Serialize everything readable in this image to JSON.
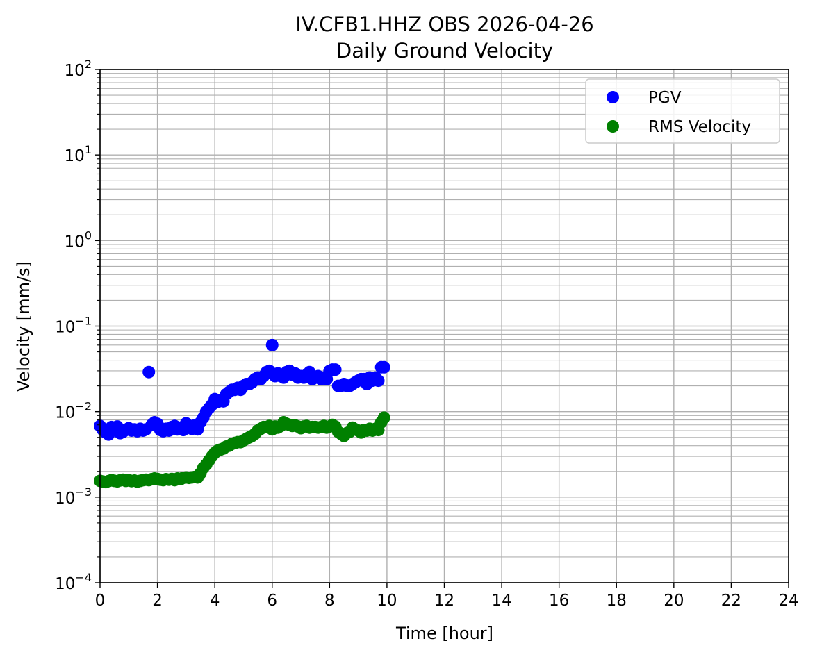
{
  "chart_data": {
    "type": "scatter",
    "title": "IV.CFB1.HHZ OBS 2026-04-26",
    "subtitle": "Daily Ground Velocity",
    "xlabel": "Time [hour]",
    "ylabel": "Velocity [mm/s]",
    "xlim": [
      0,
      24
    ],
    "ylim": [
      0.0001,
      100
    ],
    "yscale": "log",
    "grid": true,
    "legend_position": "top-right",
    "x_ticks": [
      "0",
      "2",
      "4",
      "6",
      "8",
      "10",
      "12",
      "14",
      "16",
      "18",
      "20",
      "22",
      "24"
    ],
    "y_ticks": [
      {
        "base": "10",
        "exp": "2"
      },
      {
        "base": "10",
        "exp": "1"
      },
      {
        "base": "10",
        "exp": "0"
      },
      {
        "base": "10",
        "exp": "−1"
      },
      {
        "base": "10",
        "exp": "−2"
      },
      {
        "base": "10",
        "exp": "−3"
      },
      {
        "base": "10",
        "exp": "−4"
      }
    ],
    "series": [
      {
        "name": "PGV",
        "color": "#0000ff",
        "x": [
          0.0,
          0.1,
          0.2,
          0.3,
          0.4,
          0.5,
          0.6,
          0.7,
          0.8,
          0.9,
          1.0,
          1.1,
          1.2,
          1.3,
          1.4,
          1.5,
          1.6,
          1.7,
          1.8,
          1.9,
          2.0,
          2.1,
          2.2,
          2.3,
          2.4,
          2.5,
          2.6,
          2.7,
          2.8,
          2.9,
          3.0,
          3.1,
          3.2,
          3.3,
          3.4,
          3.5,
          3.6,
          3.7,
          3.8,
          3.9,
          4.0,
          4.1,
          4.2,
          4.3,
          4.4,
          4.5,
          4.6,
          4.7,
          4.8,
          4.9,
          5.0,
          5.1,
          5.2,
          5.3,
          5.4,
          5.5,
          5.6,
          5.7,
          5.8,
          5.9,
          6.0,
          6.1,
          6.2,
          6.3,
          6.4,
          6.5,
          6.6,
          6.7,
          6.8,
          6.9,
          7.0,
          7.1,
          7.2,
          7.3,
          7.4,
          7.5,
          7.6,
          7.7,
          7.8,
          7.9,
          8.0,
          8.1,
          8.2,
          8.3,
          8.4,
          8.5,
          8.6,
          8.7,
          8.8,
          8.9,
          9.0,
          9.1,
          9.2,
          9.3,
          9.4,
          9.5,
          9.6,
          9.7,
          9.8,
          9.9
        ],
        "y": [
          0.0068,
          0.0061,
          0.0057,
          0.0054,
          0.0066,
          0.0062,
          0.0067,
          0.0056,
          0.0058,
          0.0061,
          0.0064,
          0.006,
          0.0062,
          0.0059,
          0.0063,
          0.006,
          0.0062,
          0.029,
          0.007,
          0.0075,
          0.0072,
          0.0061,
          0.0059,
          0.0063,
          0.006,
          0.0066,
          0.0068,
          0.0062,
          0.0065,
          0.0061,
          0.0073,
          0.0068,
          0.0063,
          0.0069,
          0.0062,
          0.0075,
          0.0085,
          0.01,
          0.011,
          0.012,
          0.014,
          0.013,
          0.0135,
          0.0132,
          0.016,
          0.017,
          0.018,
          0.018,
          0.019,
          0.018,
          0.02,
          0.021,
          0.021,
          0.022,
          0.024,
          0.025,
          0.024,
          0.026,
          0.029,
          0.03,
          0.06,
          0.026,
          0.028,
          0.026,
          0.025,
          0.029,
          0.03,
          0.027,
          0.028,
          0.025,
          0.026,
          0.025,
          0.027,
          0.029,
          0.024,
          0.025,
          0.026,
          0.024,
          0.025,
          0.024,
          0.03,
          0.031,
          0.031,
          0.02,
          0.02,
          0.021,
          0.02,
          0.02,
          0.021,
          0.022,
          0.023,
          0.024,
          0.024,
          0.021,
          0.025,
          0.023,
          0.025,
          0.023,
          0.033,
          0.033
        ]
      },
      {
        "name": "RMS Velocity",
        "color": "#008000",
        "x": [
          0.0,
          0.1,
          0.2,
          0.3,
          0.4,
          0.5,
          0.6,
          0.7,
          0.8,
          0.9,
          1.0,
          1.1,
          1.2,
          1.3,
          1.4,
          1.5,
          1.6,
          1.7,
          1.8,
          1.9,
          2.0,
          2.1,
          2.2,
          2.3,
          2.4,
          2.5,
          2.6,
          2.7,
          2.8,
          2.9,
          3.0,
          3.1,
          3.2,
          3.3,
          3.4,
          3.5,
          3.6,
          3.7,
          3.8,
          3.9,
          4.0,
          4.1,
          4.2,
          4.3,
          4.4,
          4.5,
          4.6,
          4.7,
          4.8,
          4.9,
          5.0,
          5.1,
          5.2,
          5.3,
          5.4,
          5.5,
          5.6,
          5.7,
          5.8,
          5.9,
          6.0,
          6.1,
          6.2,
          6.3,
          6.4,
          6.5,
          6.6,
          6.7,
          6.8,
          6.9,
          7.0,
          7.1,
          7.2,
          7.3,
          7.4,
          7.5,
          7.6,
          7.7,
          7.8,
          7.9,
          8.0,
          8.1,
          8.2,
          8.3,
          8.4,
          8.5,
          8.6,
          8.7,
          8.8,
          8.9,
          9.0,
          9.1,
          9.2,
          9.3,
          9.4,
          9.5,
          9.6,
          9.7,
          9.8,
          9.9
        ],
        "y": [
          0.00155,
          0.00152,
          0.0015,
          0.00154,
          0.00158,
          0.00155,
          0.00153,
          0.00157,
          0.0016,
          0.00155,
          0.00158,
          0.00154,
          0.00156,
          0.00152,
          0.00155,
          0.00158,
          0.0016,
          0.00158,
          0.00162,
          0.00165,
          0.00163,
          0.0016,
          0.00158,
          0.00162,
          0.0016,
          0.00163,
          0.00158,
          0.00165,
          0.00162,
          0.00168,
          0.0017,
          0.00168,
          0.0017,
          0.00172,
          0.0017,
          0.0019,
          0.0022,
          0.0024,
          0.0027,
          0.003,
          0.0033,
          0.0035,
          0.0036,
          0.0037,
          0.0039,
          0.004,
          0.0042,
          0.0043,
          0.0044,
          0.0044,
          0.0046,
          0.0048,
          0.005,
          0.0052,
          0.0055,
          0.006,
          0.0063,
          0.0066,
          0.0066,
          0.0068,
          0.0062,
          0.0067,
          0.0065,
          0.0068,
          0.0075,
          0.0072,
          0.007,
          0.0068,
          0.0069,
          0.0067,
          0.0064,
          0.0067,
          0.0068,
          0.0065,
          0.0066,
          0.0066,
          0.0065,
          0.0066,
          0.0068,
          0.0065,
          0.0067,
          0.007,
          0.0067,
          0.0058,
          0.0055,
          0.0052,
          0.0056,
          0.0058,
          0.0065,
          0.0062,
          0.006,
          0.0057,
          0.0061,
          0.006,
          0.0063,
          0.006,
          0.0063,
          0.0061,
          0.0075,
          0.0085
        ]
      }
    ]
  }
}
